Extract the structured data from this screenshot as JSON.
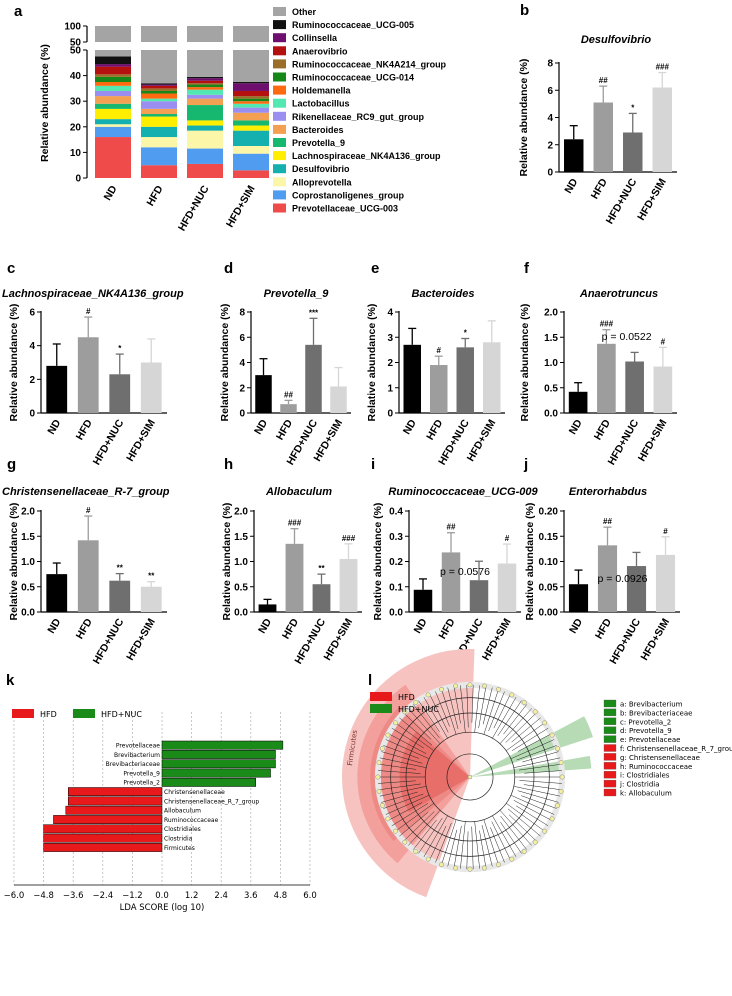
{
  "figure": {
    "panel_letters": [
      "a",
      "b",
      "c",
      "d",
      "e",
      "f",
      "g",
      "h",
      "i",
      "j",
      "k",
      "l"
    ]
  },
  "chart_data": [
    {
      "id": "a",
      "type": "stacked-bar",
      "ylabel": "Relative abundance (%)",
      "categories": [
        "ND",
        "HFD",
        "HFD+NUC",
        "HFD+SIM"
      ],
      "yticks_lower": [
        0,
        10,
        20,
        30,
        40,
        50
      ],
      "yticks_upper": [
        50,
        100
      ],
      "series": [
        {
          "name": "Prevotellaceae_UCG-003",
          "color": "#ef4b4b",
          "values": [
            16,
            5,
            5.5,
            3
          ]
        },
        {
          "name": "Coprostanoligenes_group",
          "color": "#4f9cf0",
          "values": [
            4,
            7,
            6,
            6.5
          ]
        },
        {
          "name": "Alloprevotella",
          "color": "#fbf6a8",
          "values": [
            1,
            4,
            7,
            3
          ]
        },
        {
          "name": "Desulfovibrio",
          "color": "#14b0b0",
          "values": [
            2,
            4,
            2,
            6
          ]
        },
        {
          "name": "Lachnospiraceae_NK4A136_group",
          "color": "#ffee00",
          "values": [
            4,
            4,
            2,
            2
          ]
        },
        {
          "name": "Prevotella_9",
          "color": "#16b86f",
          "values": [
            2,
            1,
            6,
            2
          ]
        },
        {
          "name": "Bacteroides",
          "color": "#f4a053",
          "values": [
            3,
            2,
            2.5,
            3
          ]
        },
        {
          "name": "Rikenellaceae_RC9_gut_group",
          "color": "#9a8ef0",
          "values": [
            2,
            3,
            1.5,
            2
          ]
        },
        {
          "name": "Lactobacillus",
          "color": "#53e8b2",
          "values": [
            2,
            1,
            2,
            1.5
          ]
        },
        {
          "name": "Holdemanella",
          "color": "#ff6a10",
          "values": [
            1.5,
            2,
            1,
            1
          ]
        },
        {
          "name": "Ruminococcaceae_UCG-014",
          "color": "#16881a",
          "values": [
            2,
            1,
            1,
            1
          ]
        },
        {
          "name": "Ruminococcaceae_NK4A214_group",
          "color": "#9a6e28",
          "values": [
            1,
            1,
            0.5,
            1
          ]
        },
        {
          "name": "Anaerovibrio",
          "color": "#b51010",
          "values": [
            3,
            1,
            1,
            2
          ]
        },
        {
          "name": "Collinsella",
          "color": "#6e0e6e",
          "values": [
            1,
            0.5,
            1,
            3
          ]
        },
        {
          "name": "Ruminococcaceae_UCG-005",
          "color": "#111111",
          "values": [
            3,
            0.5,
            0.5,
            0.5
          ]
        },
        {
          "name": "Other",
          "color": "#a4a4a4",
          "values": [
            52.5,
            63,
            60,
            63
          ]
        }
      ]
    },
    {
      "id": "b",
      "type": "bar",
      "title": "Desulfovibrio",
      "ylabel": "Relative abundance (%)",
      "categories": [
        "ND",
        "HFD",
        "HFD+NUC",
        "HFD+SIM"
      ],
      "values": [
        2.4,
        5.1,
        2.9,
        6.2
      ],
      "errors": [
        1.0,
        1.2,
        1.4,
        1.1
      ],
      "sig": [
        "",
        "##",
        "*",
        "###"
      ],
      "ylim": [
        0,
        8
      ],
      "yticks": [
        0,
        2,
        4,
        6,
        8
      ]
    },
    {
      "id": "c",
      "type": "bar",
      "title": "Lachnospiraceae_NK4A136_group",
      "ylabel": "Relative abundance (%)",
      "categories": [
        "ND",
        "HFD",
        "HFD+NUC",
        "HFD+SIM"
      ],
      "values": [
        2.8,
        4.5,
        2.3,
        3.0
      ],
      "errors": [
        1.3,
        1.2,
        1.2,
        1.4
      ],
      "sig": [
        "",
        "#",
        "*",
        ""
      ],
      "ylim": [
        0,
        6
      ],
      "yticks": [
        0,
        2,
        4,
        6
      ]
    },
    {
      "id": "d",
      "type": "bar",
      "title": "Prevotella_9",
      "ylabel": "Relative abundance (%)",
      "categories": [
        "ND",
        "HFD",
        "HFD+NUC",
        "HFD+SIM"
      ],
      "values": [
        3.0,
        0.7,
        5.4,
        2.1
      ],
      "errors": [
        1.3,
        0.3,
        2.1,
        1.5
      ],
      "sig": [
        "",
        "##",
        "***",
        ""
      ],
      "ylim": [
        0,
        8
      ],
      "yticks": [
        0,
        2,
        4,
        6,
        8
      ]
    },
    {
      "id": "e",
      "type": "bar",
      "title": "Bacteroides",
      "ylabel": "Relative abundance (%)",
      "categories": [
        "ND",
        "HFD",
        "HFD+NUC",
        "HFD+SIM"
      ],
      "values": [
        2.7,
        1.9,
        2.6,
        2.8
      ],
      "errors": [
        0.65,
        0.35,
        0.35,
        0.85
      ],
      "sig": [
        "",
        "#",
        "*",
        ""
      ],
      "ylim": [
        0,
        4
      ],
      "yticks": [
        0,
        1,
        2,
        3,
        4
      ]
    },
    {
      "id": "f",
      "type": "bar",
      "title": "Anaerotruncus",
      "ylabel": "Relative abundance (%)",
      "categories": [
        "ND",
        "HFD",
        "HFD+NUC",
        "HFD+SIM"
      ],
      "values": [
        0.42,
        1.37,
        1.02,
        0.92
      ],
      "errors": [
        0.18,
        0.28,
        0.18,
        0.38
      ],
      "sig": [
        "",
        "###",
        "",
        "#"
      ],
      "pvalue": "p = 0.0522",
      "ylim": [
        0,
        2.0
      ],
      "yticks": [
        0.0,
        0.5,
        1.0,
        1.5,
        2.0
      ]
    },
    {
      "id": "g",
      "type": "bar",
      "title": "Christensenellaceae_R-7_group",
      "ylabel": "Relative abundance (%)",
      "categories": [
        "ND",
        "HFD",
        "HFD+NUC",
        "HFD+SIM"
      ],
      "values": [
        0.75,
        1.42,
        0.62,
        0.5
      ],
      "errors": [
        0.22,
        0.48,
        0.14,
        0.1
      ],
      "sig": [
        "",
        "#",
        "**",
        "**"
      ],
      "ylim": [
        0,
        2.0
      ],
      "yticks": [
        0.0,
        0.5,
        1.0,
        1.5,
        2.0
      ]
    },
    {
      "id": "h",
      "type": "bar",
      "title": "Allobaculum",
      "ylabel": "Relative abundance (%)",
      "categories": [
        "ND",
        "HFD",
        "HFD+NUC",
        "HFD+SIM"
      ],
      "values": [
        0.15,
        1.35,
        0.55,
        1.05
      ],
      "errors": [
        0.1,
        0.3,
        0.2,
        0.3
      ],
      "sig": [
        "",
        "###",
        "**",
        "###"
      ],
      "ylim": [
        0,
        2.0
      ],
      "yticks": [
        0.0,
        0.5,
        1.0,
        1.5,
        2.0
      ]
    },
    {
      "id": "i",
      "type": "bar",
      "title": "Ruminococcaceae_UCG-009",
      "ylabel": "Relative abundance (%)",
      "categories": [
        "ND",
        "HFD",
        "HFD+NUC",
        "HFD+SIM"
      ],
      "values": [
        0.088,
        0.236,
        0.126,
        0.192
      ],
      "errors": [
        0.043,
        0.078,
        0.075,
        0.077
      ],
      "sig": [
        "",
        "##",
        "",
        "#"
      ],
      "pvalue": "p = 0.0576",
      "ylim": [
        0,
        0.4
      ],
      "yticks": [
        0.0,
        0.1,
        0.2,
        0.3,
        0.4
      ]
    },
    {
      "id": "j",
      "type": "bar",
      "title": "Enterorhabdus",
      "ylabel": "Relative abundance (%)",
      "categories": [
        "ND",
        "HFD",
        "HFD+NUC",
        "HFD+SIM"
      ],
      "values": [
        0.055,
        0.132,
        0.091,
        0.113
      ],
      "errors": [
        0.028,
        0.036,
        0.027,
        0.036
      ],
      "sig": [
        "",
        "##",
        "",
        "#"
      ],
      "pvalue": "p = 0.0926",
      "ylim": [
        0,
        0.2
      ],
      "yticks": [
        0.0,
        0.05,
        0.1,
        0.15,
        0.2
      ],
      "ytick_labels": [
        "0.00",
        "0.05",
        "0.10",
        "0.15",
        "0.20"
      ]
    },
    {
      "id": "k",
      "type": "horizontal-bar",
      "xlabel": "LDA SCORE (log 10)",
      "xticks": [
        -6.0,
        -4.8,
        -3.6,
        -2.4,
        -1.2,
        0.0,
        1.2,
        2.4,
        3.6,
        4.8,
        6.0
      ],
      "xtick_labels": [
        "−6.0",
        "−4.8",
        "−3.6",
        "−2.4",
        "−1.2",
        "0.0",
        "1.2",
        "2.4",
        "3.6",
        "4.8",
        "6.0"
      ],
      "legend": [
        {
          "name": "HFD",
          "color": "#e8191b"
        },
        {
          "name": "HFD+NUC",
          "color": "#1a8a19"
        }
      ],
      "bars": [
        {
          "label": "Prevotellaceae",
          "value": 4.9,
          "group": "HFD+NUC"
        },
        {
          "label": "Brevibacterium",
          "value": 4.6,
          "group": "HFD+NUC"
        },
        {
          "label": "Brevibacteriaceae",
          "value": 4.6,
          "group": "HFD+NUC"
        },
        {
          "label": "Prevotella_9",
          "value": 4.4,
          "group": "HFD+NUC"
        },
        {
          "label": "Prevotella_2",
          "value": 3.8,
          "group": "HFD+NUC"
        },
        {
          "label": "Christensenellaceae",
          "value": -3.8,
          "group": "HFD"
        },
        {
          "label": "Christensenellaceae_R_7_group",
          "value": -3.8,
          "group": "HFD"
        },
        {
          "label": "Allobaculum",
          "value": -3.9,
          "group": "HFD"
        },
        {
          "label": "Ruminococcaceae",
          "value": -4.4,
          "group": "HFD"
        },
        {
          "label": "Clostridiales",
          "value": -4.8,
          "group": "HFD"
        },
        {
          "label": "Clostridia",
          "value": -4.8,
          "group": "HFD"
        },
        {
          "label": "Firmicutes",
          "value": -4.8,
          "group": "HFD"
        }
      ]
    },
    {
      "id": "l",
      "type": "cladogram",
      "legend_groups": [
        {
          "name": "HFD",
          "color": "#e8191b"
        },
        {
          "name": "HFD+NUC",
          "color": "#1a8a19"
        }
      ],
      "clade_label": "Firmicutes",
      "key": [
        {
          "text": "a: Brevibacterium",
          "color": "#1a8a19"
        },
        {
          "text": "b: Brevibacteriaceae",
          "color": "#1a8a19"
        },
        {
          "text": "c: Prevotella_2",
          "color": "#1a8a19"
        },
        {
          "text": "d: Prevotella_9",
          "color": "#1a8a19"
        },
        {
          "text": "e: Prevotellaceae",
          "color": "#1a8a19"
        },
        {
          "text": "f: Christensenellaceae_R_7_group",
          "color": "#e8191b"
        },
        {
          "text": "g: Christensenellaceae",
          "color": "#e8191b"
        },
        {
          "text": "h: Ruminococcaceae",
          "color": "#e8191b"
        },
        {
          "text": "i: Clostridiales",
          "color": "#e8191b"
        },
        {
          "text": "j: Clostridia",
          "color": "#e8191b"
        },
        {
          "text": "k: Allobaculum",
          "color": "#e8191b"
        }
      ]
    }
  ]
}
